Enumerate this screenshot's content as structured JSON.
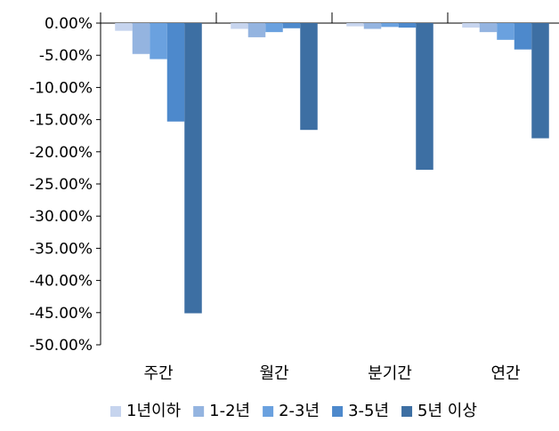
{
  "chart_data": {
    "type": "bar",
    "categories": [
      "주간",
      "월간",
      "분기간",
      "연간"
    ],
    "series": [
      {
        "name": "1년이하",
        "values": [
          -1.2,
          -0.9,
          -0.5,
          -0.7
        ],
        "color": "#c6d4ee"
      },
      {
        "name": "1-2년",
        "values": [
          -4.8,
          -2.2,
          -0.9,
          -1.4
        ],
        "color": "#94b4e0"
      },
      {
        "name": "2-3년",
        "values": [
          -5.6,
          -1.4,
          -0.6,
          -2.6
        ],
        "color": "#6aa1df"
      },
      {
        "name": "3-5년",
        "values": [
          -15.3,
          -0.8,
          -0.7,
          -4.1
        ],
        "color": "#4d89cc"
      },
      {
        "name": "5년 이상",
        "values": [
          -45.1,
          -16.6,
          -22.8,
          -17.9
        ],
        "color": "#3d6fa3"
      }
    ],
    "yticks": [
      "0.00%",
      "-5.00%",
      "-10.00%",
      "-15.00%",
      "-20.00%",
      "-25.00%",
      "-30.00%",
      "-35.00%",
      "-40.00%",
      "-45.00%",
      "-50.00%"
    ],
    "ylim": [
      -50,
      0
    ],
    "legend_position": "bottom",
    "grid": false
  }
}
